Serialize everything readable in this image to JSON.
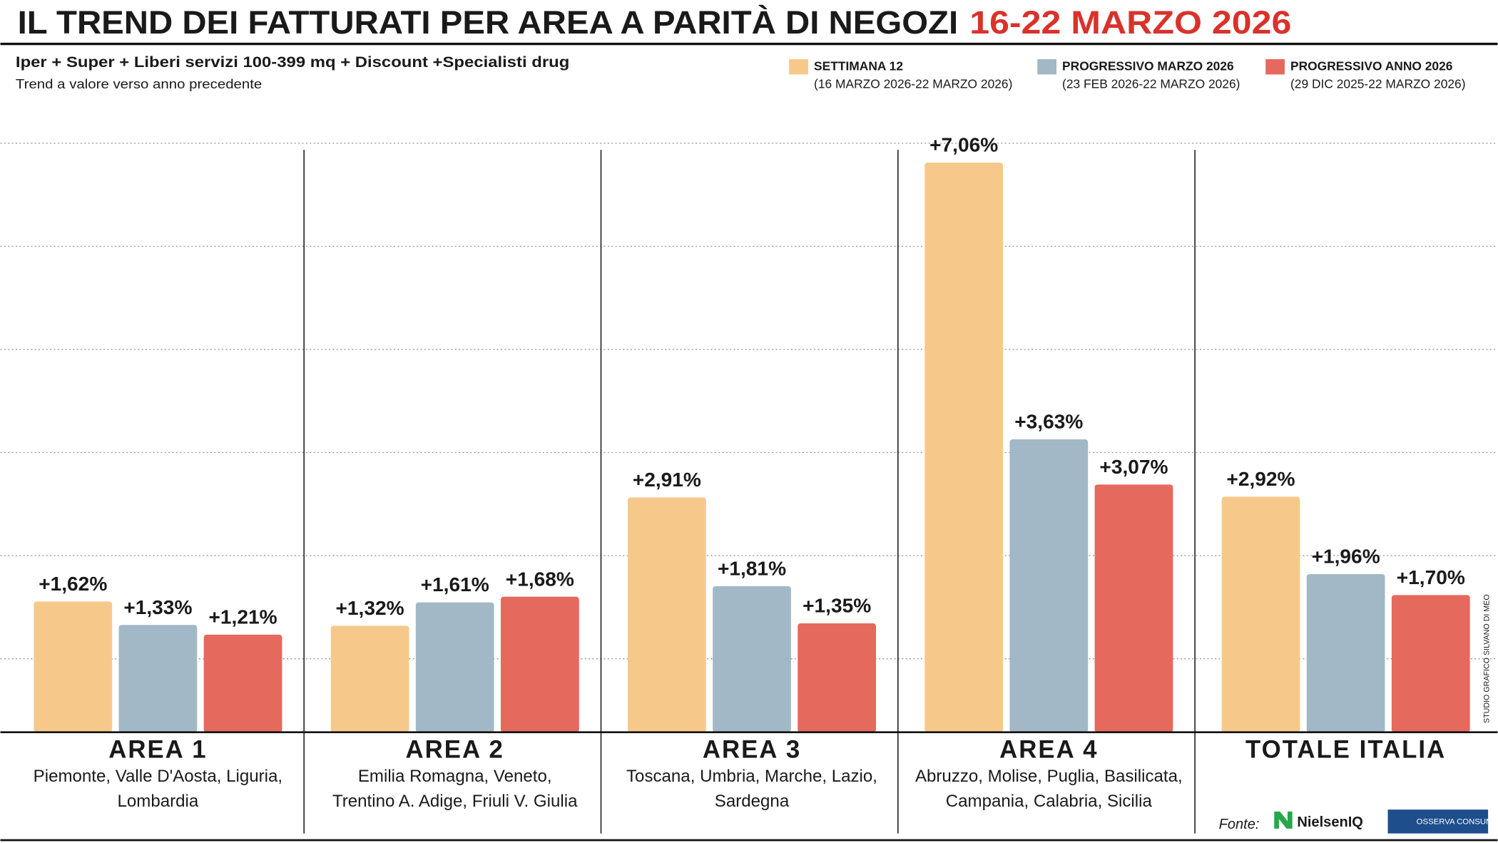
{
  "chart_data": {
    "type": "bar",
    "title": "IL TREND DEI FATTURATI PER AREA A PARITÀ DI NEGOZI",
    "title_highlight": "16-22 MARZO 2026",
    "subtitle": "Iper + Super + Liberi servizi 100-399 mq + Discount +Specialisti drug",
    "subtitle2": "Trend a valore verso anno precedente",
    "categories": [
      "AREA 1",
      "AREA 2",
      "AREA 3",
      "AREA 4",
      "TOTALE ITALIA"
    ],
    "regions": [
      [
        "Piemonte, Valle D'Aosta, Liguria,",
        "Lombardia"
      ],
      [
        "Emilia Romagna, Veneto,",
        "Trentino A. Adige, Friuli V. Giulia"
      ],
      [
        "Toscana, Umbria, Marche, Lazio,",
        "Sardegna"
      ],
      [
        "Abruzzo, Molise, Puglia, Basilicata,",
        "Campania, Calabria, Sicilia"
      ],
      []
    ],
    "series": [
      {
        "name": "SETTIMANA 12",
        "period": "(16 MARZO 2026-22 MARZO 2026)",
        "color": "#f6c98a",
        "values": [
          1.62,
          1.32,
          2.91,
          7.06,
          2.92
        ],
        "value_labels": [
          "+1,62%",
          "+1,32%",
          "+2,91%",
          "+7,06%",
          "+2,92%"
        ]
      },
      {
        "name": "PROGRESSIVO MARZO 2026",
        "period": "(23 FEB 2026-22 MARZO 2026)",
        "color": "#a2b8c6",
        "values": [
          1.33,
          1.61,
          1.81,
          3.63,
          1.96
        ],
        "value_labels": [
          "+1,33%",
          "+1,61%",
          "+1,81%",
          "+3,63%",
          "+1,96%"
        ]
      },
      {
        "name": "PROGRESSIVO ANNO 2026",
        "period": "(29 DIC 2025-22 MARZO 2026)",
        "color": "#e5695d",
        "values": [
          1.21,
          1.68,
          1.35,
          3.07,
          1.7
        ],
        "value_labels": [
          "+1,21%",
          "+1,68%",
          "+1,35%",
          "+3,07%",
          "+1,70%"
        ]
      }
    ],
    "ylim": [
      0,
      7.3
    ],
    "source_label": "Fonte:",
    "source_1": "NielsenIQ",
    "source_2": "OSSERVA CONSUMI",
    "credit": "STUDIO GRAFICO SILVANO DI MEO"
  }
}
